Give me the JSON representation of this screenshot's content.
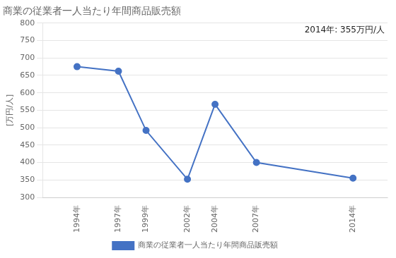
{
  "chart_data": {
    "type": "line",
    "title": "商業の従業者一人当たり年間商品販売額",
    "ylabel": "[万円/人]",
    "annotation": "2014年: 355万円/人",
    "x": [
      1994,
      1997,
      1999,
      2002,
      2004,
      2007,
      2014
    ],
    "xlim": [
      1991.5,
      2016.5
    ],
    "xticks": [
      {
        "value": 1994,
        "label": "1994年"
      },
      {
        "value": 1997,
        "label": "1997年"
      },
      {
        "value": 1999,
        "label": "1999年"
      },
      {
        "value": 2002,
        "label": "2002年"
      },
      {
        "value": 2004,
        "label": "2004年"
      },
      {
        "value": 2007,
        "label": "2007年"
      },
      {
        "value": 2014,
        "label": "2014年"
      }
    ],
    "series": [
      {
        "name": "商業の従業者一人当たり年間商品販売額",
        "color": "#4472C4",
        "marker": "circle",
        "values": [
          675,
          662,
          492,
          352,
          567,
          400,
          355
        ]
      }
    ],
    "ylim": [
      300,
      800
    ],
    "yticks": [
      300,
      350,
      400,
      450,
      500,
      550,
      600,
      650,
      700,
      750,
      800
    ],
    "grid": "y",
    "legend": "bottom"
  }
}
